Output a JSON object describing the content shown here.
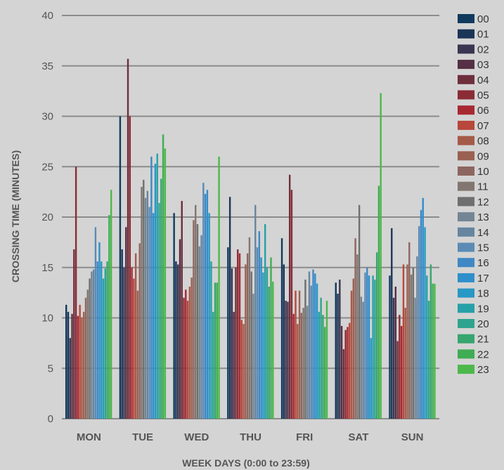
{
  "chart_data": {
    "type": "bar",
    "xlabel": "WEEK DAYS (0:00 to 23:59)",
    "ylabel": "CROSSING TIME (MINUTES)",
    "ylim": [
      0,
      40
    ],
    "yticks": [
      0,
      5,
      10,
      15,
      20,
      25,
      30,
      35,
      40
    ],
    "grid": true,
    "legend_position": "right",
    "categories": [
      "MON",
      "TUE",
      "WED",
      "THU",
      "FRI",
      "SAT",
      "SUN"
    ],
    "series": [
      {
        "name": "00",
        "color": "#0f3a5e",
        "values": [
          11.3,
          30.0,
          20.4,
          17.0,
          17.9,
          13.5,
          14.2
        ]
      },
      {
        "name": "01",
        "color": "#1b3557",
        "values": [
          10.6,
          16.8,
          15.6,
          22.0,
          15.3,
          12.4,
          18.9
        ]
      },
      {
        "name": "02",
        "color": "#3a3650",
        "values": [
          8.0,
          15.0,
          15.3,
          14.9,
          11.7,
          13.8,
          12.0
        ]
      },
      {
        "name": "03",
        "color": "#552f44",
        "values": [
          10.4,
          19.0,
          17.8,
          10.6,
          11.6,
          9.2,
          13.1
        ]
      },
      {
        "name": "04",
        "color": "#6e2f3c",
        "values": [
          16.8,
          35.7,
          21.6,
          15.0,
          24.2,
          6.9,
          7.7
        ]
      },
      {
        "name": "05",
        "color": "#8a2c35",
        "values": [
          25.0,
          30.0,
          12.0,
          16.8,
          22.7,
          8.8,
          10.3
        ]
      },
      {
        "name": "06",
        "color": "#a82832",
        "values": [
          10.2,
          15.0,
          12.8,
          16.4,
          10.4,
          9.1,
          9.2
        ]
      },
      {
        "name": "07",
        "color": "#b8473c",
        "values": [
          11.3,
          13.9,
          11.7,
          9.8,
          12.7,
          9.5,
          15.3
        ]
      },
      {
        "name": "08",
        "color": "#a55a48",
        "values": [
          10.0,
          16.4,
          13.1,
          9.4,
          9.4,
          12.7,
          11.0
        ]
      },
      {
        "name": "09",
        "color": "#9a6153",
        "values": [
          10.6,
          12.7,
          14.0,
          15.3,
          12.7,
          13.9,
          15.3
        ]
      },
      {
        "name": "10",
        "color": "#8e6660",
        "values": [
          12.0,
          17.4,
          19.7,
          16.4,
          10.5,
          17.9,
          17.5
        ]
      },
      {
        "name": "11",
        "color": "#827670",
        "values": [
          12.8,
          23.0,
          21.2,
          18.0,
          11.0,
          16.3,
          14.3
        ]
      },
      {
        "name": "12",
        "color": "#6f6f6f",
        "values": [
          13.9,
          23.7,
          19.3,
          14.6,
          13.8,
          21.2,
          15.0
        ]
      },
      {
        "name": "13",
        "color": "#748594",
        "values": [
          14.6,
          21.9,
          17.1,
          12.4,
          11.2,
          12.1,
          12.0
        ]
      },
      {
        "name": "14",
        "color": "#6685a0",
        "values": [
          14.8,
          22.6,
          18.2,
          21.2,
          14.6,
          11.6,
          16.1
        ]
      },
      {
        "name": "15",
        "color": "#5b8bb5",
        "values": [
          19.0,
          21.0,
          23.4,
          17.0,
          13.2,
          14.5,
          19.1
        ]
      },
      {
        "name": "16",
        "color": "#3f88c4",
        "values": [
          15.6,
          26.0,
          22.3,
          18.6,
          14.8,
          15.0,
          20.7
        ]
      },
      {
        "name": "17",
        "color": "#2f8fcb",
        "values": [
          17.5,
          20.4,
          22.7,
          16.0,
          14.4,
          14.2,
          21.9
        ]
      },
      {
        "name": "18",
        "color": "#2898c4",
        "values": [
          15.6,
          25.3,
          20.4,
          14.5,
          13.4,
          8.0,
          19.0
        ]
      },
      {
        "name": "19",
        "color": "#27a0a8",
        "values": [
          13.9,
          26.3,
          15.6,
          19.3,
          10.6,
          14.2,
          14.2
        ]
      },
      {
        "name": "20",
        "color": "#2ea48e",
        "values": [
          14.9,
          21.4,
          10.6,
          15.0,
          12.0,
          13.8,
          11.7
        ]
      },
      {
        "name": "21",
        "color": "#36a56e",
        "values": [
          15.6,
          23.8,
          13.5,
          13.1,
          10.3,
          16.5,
          15.3
        ]
      },
      {
        "name": "22",
        "color": "#3fad54",
        "values": [
          20.2,
          28.2,
          13.5,
          16.0,
          9.1,
          23.1,
          13.4
        ]
      },
      {
        "name": "23",
        "color": "#4cb84a",
        "values": [
          22.7,
          26.8,
          26.0,
          13.6,
          11.7,
          32.3,
          13.4
        ]
      }
    ]
  }
}
